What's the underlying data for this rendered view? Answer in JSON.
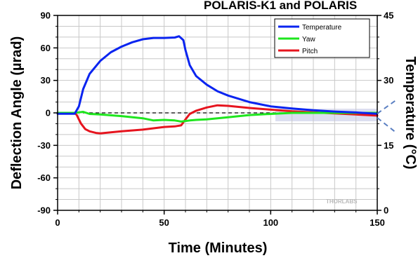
{
  "chart_data": {
    "type": "line",
    "title": "POLARIS-K1 and POLARIS",
    "xlabel": "Time (Minutes)",
    "ylabel": "Deflection Angle (µrad)",
    "y2label": "Temperature (°C)",
    "xlim": [
      0,
      150
    ],
    "ylim": [
      -90,
      90
    ],
    "y2lim": [
      0,
      45
    ],
    "xticks": [
      "0",
      "50",
      "100",
      "150"
    ],
    "yticks": [
      "-90",
      "-60",
      "-30",
      "0",
      "30",
      "60",
      "90"
    ],
    "y2ticks": [
      "0",
      "15",
      "30",
      "45"
    ],
    "grid": true,
    "legend_position": "top-right",
    "reference_line_y": 0,
    "watermark": "THORLABS",
    "series": [
      {
        "name": "Temperature",
        "axis": "right",
        "color": "#0a24f0",
        "x": [
          0,
          8,
          10,
          12,
          15,
          20,
          25,
          30,
          35,
          40,
          45,
          50,
          55,
          57,
          59,
          60,
          62,
          65,
          70,
          75,
          80,
          90,
          100,
          110,
          120,
          130,
          140,
          150
        ],
        "y": [
          22.3,
          22.3,
          24,
          28,
          31.5,
          34.5,
          36.5,
          37.8,
          38.8,
          39.5,
          39.8,
          39.8,
          39.9,
          40.2,
          39.3,
          37,
          33.5,
          31,
          29,
          27.5,
          26.5,
          25,
          24,
          23.5,
          23.1,
          22.8,
          22.6,
          22.3
        ]
      },
      {
        "name": "Yaw",
        "axis": "left",
        "color": "#1ee61e",
        "x": [
          0,
          8,
          10,
          12,
          15,
          20,
          30,
          40,
          45,
          50,
          55,
          58,
          60,
          62,
          65,
          70,
          80,
          90,
          100,
          110,
          120,
          130,
          140,
          150
        ],
        "y": [
          0,
          0,
          0.5,
          1,
          -1,
          -1.5,
          -3,
          -5,
          -7,
          -6.5,
          -7,
          -8,
          -7.5,
          -7,
          -6.5,
          -6,
          -4,
          -2,
          -1,
          0,
          0,
          0,
          0,
          0
        ]
      },
      {
        "name": "Pitch",
        "axis": "left",
        "color": "#e6141e",
        "x": [
          0,
          8,
          9,
          10,
          11,
          13,
          15,
          18,
          20,
          25,
          30,
          40,
          50,
          55,
          58,
          60,
          62,
          65,
          70,
          75,
          80,
          90,
          100,
          110,
          120,
          130,
          140,
          150
        ],
        "y": [
          0,
          0,
          -2,
          -6,
          -10,
          -15,
          -17,
          -18.5,
          -19,
          -18,
          -17,
          -15.5,
          -13,
          -12.5,
          -11.5,
          -6,
          -1,
          2,
          5,
          7,
          6.5,
          4.5,
          3,
          1.5,
          0.5,
          -0.5,
          -1.5,
          -2.5
        ]
      }
    ]
  }
}
